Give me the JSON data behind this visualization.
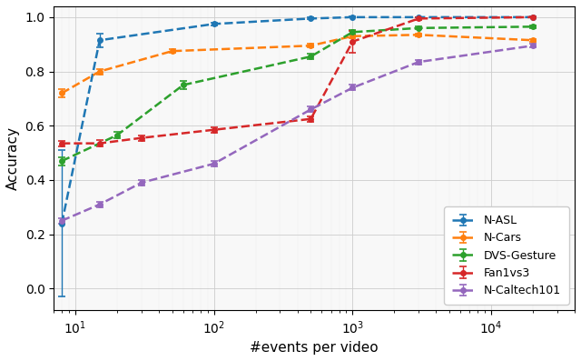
{
  "title": "",
  "xlabel": "#events per video",
  "ylabel": "Accuracy",
  "xlim_log": [
    7,
    40000
  ],
  "ylim": [
    -0.08,
    1.04
  ],
  "series": {
    "N-ASL": {
      "color": "#1f77b4",
      "x": [
        8,
        15,
        100,
        500,
        1000,
        3000,
        20000
      ],
      "y": [
        0.24,
        0.915,
        0.975,
        0.995,
        1.0,
        1.0,
        1.0
      ],
      "yerr": [
        0.27,
        0.025,
        0.005,
        0.003,
        0.002,
        0.001,
        0.001
      ]
    },
    "N-Cars": {
      "color": "#ff7f0e",
      "x": [
        8,
        15,
        50,
        500,
        1000,
        3000,
        20000
      ],
      "y": [
        0.72,
        0.8,
        0.875,
        0.895,
        0.93,
        0.935,
        0.915
      ],
      "yerr": [
        0.015,
        0.01,
        0.007,
        0.006,
        0.006,
        0.005,
        0.005
      ]
    },
    "DVS-Gesture": {
      "color": "#2ca02c",
      "x": [
        8,
        20,
        60,
        500,
        1000,
        3000,
        20000
      ],
      "y": [
        0.47,
        0.565,
        0.75,
        0.855,
        0.945,
        0.96,
        0.965
      ],
      "yerr": [
        0.015,
        0.012,
        0.015,
        0.01,
        0.008,
        0.005,
        0.005
      ]
    },
    "Fan1vs3": {
      "color": "#d62728",
      "x": [
        8,
        15,
        30,
        100,
        500,
        1000,
        3000,
        20000
      ],
      "y": [
        0.535,
        0.535,
        0.555,
        0.585,
        0.625,
        0.91,
        0.995,
        1.0
      ],
      "yerr": [
        0.01,
        0.012,
        0.01,
        0.01,
        0.01,
        0.04,
        0.004,
        0.002
      ]
    },
    "N-Caltech101": {
      "color": "#9467bd",
      "x": [
        8,
        15,
        30,
        100,
        500,
        1000,
        3000,
        20000
      ],
      "y": [
        0.25,
        0.31,
        0.39,
        0.46,
        0.66,
        0.74,
        0.835,
        0.895
      ],
      "yerr": [
        0.01,
        0.01,
        0.01,
        0.01,
        0.01,
        0.01,
        0.008,
        0.006
      ]
    }
  }
}
